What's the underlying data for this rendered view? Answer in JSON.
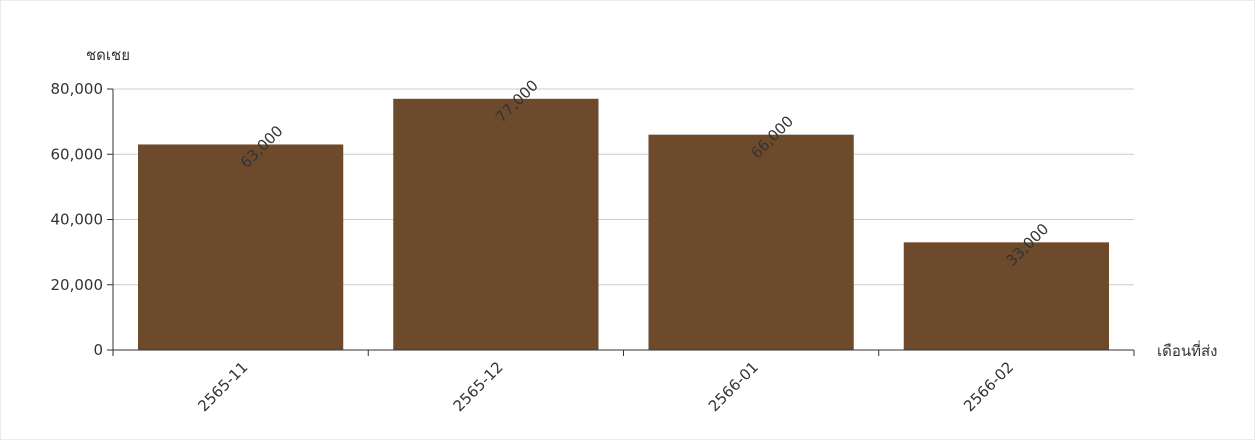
{
  "chart_data": {
    "type": "bar",
    "categories": [
      "2565-11",
      "2565-12",
      "2566-01",
      "2566-02"
    ],
    "series": [
      {
        "values": [
          63000,
          77000,
          66000,
          33000
        ],
        "color": "#6e4a2d"
      }
    ],
    "data_labels": [
      "63,000",
      "77,000",
      "66,000",
      "33,000"
    ],
    "title": "",
    "xlabel": "เดือนที่ส่ง",
    "ylabel": "ชดเชย",
    "ylim": [
      0,
      80000
    ],
    "yticks": [
      0,
      20000,
      40000,
      60000,
      80000
    ],
    "ytick_labels": [
      "0",
      "20,000",
      "40,000",
      "60,000",
      "80,000"
    ],
    "grid": true,
    "legend": "none"
  }
}
